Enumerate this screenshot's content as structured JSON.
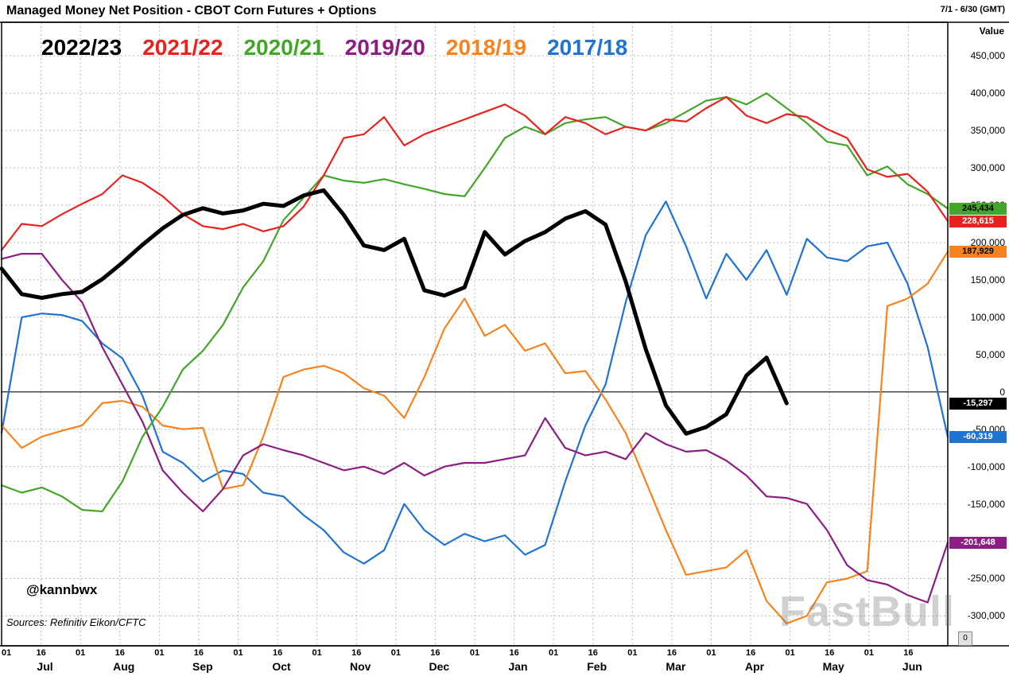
{
  "header": {
    "title": "Managed Money Net Position - CBOT Corn Futures + Options",
    "date_range": "7/1 - 6/30 (GMT)",
    "axis_title": "Value"
  },
  "watermark": {
    "handle": "@kannbwx",
    "source": "Sources: Refinitiv Eikon/CFTC",
    "brand": "FastBull"
  },
  "misc": {
    "corner_label": "0"
  },
  "chart_data": {
    "type": "line",
    "title": "Managed Money Net Position - CBOT Corn Futures + Options",
    "x_axis": {
      "months": [
        "Jul",
        "Aug",
        "Sep",
        "Oct",
        "Nov",
        "Dec",
        "Jan",
        "Feb",
        "Mar",
        "Apr",
        "May",
        "Jun"
      ],
      "tick_labels_per_month": [
        "01",
        "16"
      ]
    },
    "y_axis": {
      "label": "Value",
      "ticks": [
        450000,
        400000,
        350000,
        300000,
        250000,
        200000,
        150000,
        100000,
        50000,
        0,
        -50000,
        -100000,
        -150000,
        -200000,
        -250000,
        -300000
      ],
      "ylim": [
        -340000,
        495000
      ]
    },
    "grid": true,
    "legend_position": "top-left-inside",
    "series": [
      {
        "name": "2022/23",
        "color": "#000000",
        "line_width": 5,
        "end_value": -15297,
        "end_label": "-15,297",
        "label_text_color": "#ffffff",
        "values": [
          165000,
          131000,
          126000,
          131000,
          134000,
          151000,
          173000,
          197000,
          219000,
          237000,
          246000,
          239000,
          243000,
          252000,
          249000,
          263000,
          270000,
          237000,
          196000,
          190000,
          205000,
          136000,
          129000,
          140000,
          214000,
          184000,
          202000,
          214000,
          232000,
          242000,
          224000,
          148000,
          57000,
          -18000,
          -56000,
          -47000,
          -30000,
          22000,
          46000,
          -15297
        ]
      },
      {
        "name": "2021/22",
        "color": "#e8231f",
        "line_width": 2.2,
        "end_value": 228615,
        "end_label": "228,615",
        "label_text_color": "#ffffff",
        "values": [
          190000,
          225000,
          222000,
          238000,
          252000,
          265000,
          290000,
          280000,
          262000,
          238000,
          222000,
          218000,
          225000,
          215000,
          222000,
          248000,
          290000,
          340000,
          345000,
          368000,
          330000,
          345000,
          355000,
          365000,
          375000,
          385000,
          370000,
          345000,
          368000,
          360000,
          345000,
          355000,
          350000,
          365000,
          362000,
          380000,
          395000,
          370000,
          360000,
          372000,
          368000,
          352000,
          340000,
          298000,
          288000,
          292000,
          268000,
          228615
        ]
      },
      {
        "name": "2020/21",
        "color": "#43a629",
        "line_width": 2.2,
        "end_value": 245434,
        "end_label": "245,434",
        "label_text_color": "#000000",
        "values": [
          -125000,
          -135000,
          -128000,
          -140000,
          -158000,
          -160000,
          -120000,
          -60000,
          -20000,
          30000,
          55000,
          90000,
          140000,
          175000,
          230000,
          260000,
          290000,
          283000,
          280000,
          285000,
          278000,
          272000,
          265000,
          262000,
          300000,
          340000,
          355000,
          345000,
          360000,
          365000,
          368000,
          355000,
          350000,
          360000,
          375000,
          390000,
          395000,
          385000,
          400000,
          380000,
          360000,
          335000,
          330000,
          290000,
          302000,
          278000,
          265000,
          245434
        ]
      },
      {
        "name": "2019/20",
        "color": "#8c1d82",
        "line_width": 2.2,
        "end_value": -201648,
        "end_label": "-201,648",
        "label_text_color": "#ffffff",
        "values": [
          178000,
          185000,
          185000,
          150000,
          120000,
          60000,
          10000,
          -40000,
          -105000,
          -135000,
          -160000,
          -130000,
          -85000,
          -70000,
          -78000,
          -85000,
          -95000,
          -105000,
          -100000,
          -110000,
          -95000,
          -112000,
          -100000,
          -95000,
          -95000,
          -90000,
          -85000,
          -35000,
          -75000,
          -85000,
          -80000,
          -90000,
          -55000,
          -70000,
          -80000,
          -78000,
          -92000,
          -112000,
          -140000,
          -142000,
          -150000,
          -185000,
          -232000,
          -252000,
          -258000,
          -272000,
          -282000,
          -201648
        ]
      },
      {
        "name": "2018/19",
        "color": "#f5831f",
        "line_width": 2.2,
        "end_value": 187929,
        "end_label": "187,929",
        "label_text_color": "#000000",
        "values": [
          -45000,
          -75000,
          -60000,
          -52000,
          -45000,
          -15000,
          -12000,
          -20000,
          -45000,
          -50000,
          -48000,
          -130000,
          -125000,
          -60000,
          20000,
          30000,
          35000,
          25000,
          5000,
          -5000,
          -35000,
          20000,
          85000,
          125000,
          75000,
          90000,
          55000,
          65000,
          25000,
          28000,
          -10000,
          -55000,
          -120000,
          -185000,
          -245000,
          -240000,
          -235000,
          -212000,
          -280000,
          -310000,
          -300000,
          -255000,
          -250000,
          -240000,
          115000,
          125000,
          145000,
          187929
        ]
      },
      {
        "name": "2017/18",
        "color": "#2173d1",
        "line_width": 2.2,
        "end_value": -60319,
        "end_label": "-60,319",
        "label_text_color": "#ffffff",
        "values": [
          -55000,
          100000,
          105000,
          103000,
          95000,
          65000,
          45000,
          -5000,
          -80000,
          -95000,
          -120000,
          -105000,
          -110000,
          -135000,
          -140000,
          -165000,
          -185000,
          -215000,
          -230000,
          -212000,
          -150000,
          -185000,
          -205000,
          -190000,
          -200000,
          -192000,
          -218000,
          -205000,
          -120000,
          -45000,
          10000,
          120000,
          210000,
          255000,
          195000,
          125000,
          185000,
          150000,
          190000,
          130000,
          205000,
          180000,
          175000,
          195000,
          200000,
          145000,
          60000,
          -60319
        ]
      }
    ]
  }
}
